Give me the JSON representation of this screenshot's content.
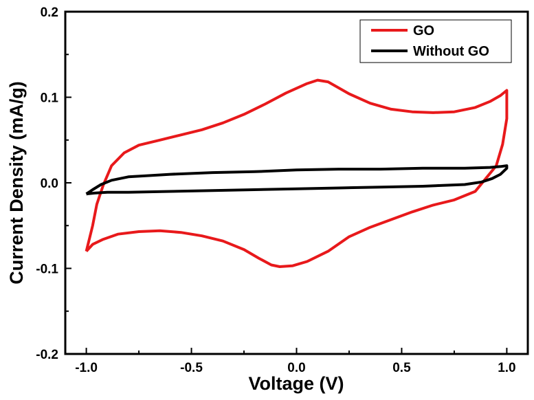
{
  "chart_data": {
    "type": "line",
    "xlabel": "Voltage (V)",
    "ylabel": "Current Density (mA/g)",
    "xlim": [
      -1.1,
      1.1
    ],
    "ylim": [
      -0.2,
      0.2
    ],
    "x_ticks": [
      -1.0,
      -0.5,
      0.0,
      0.5,
      1.0
    ],
    "x_tick_labels": [
      "-1.0",
      "-0.5",
      "0.0",
      "0.5",
      "1.0"
    ],
    "y_ticks": [
      -0.2,
      -0.1,
      0.0,
      0.1,
      0.2
    ],
    "y_tick_labels": [
      "-0.2",
      "-0.1",
      "0.0",
      "0.1",
      "0.2"
    ],
    "grid": false,
    "legend_position": "top-right",
    "series": [
      {
        "name": "GO",
        "color": "#e8191b",
        "x": [
          -1.0,
          -0.97,
          -0.95,
          -0.92,
          -0.88,
          -0.82,
          -0.75,
          -0.65,
          -0.55,
          -0.45,
          -0.35,
          -0.25,
          -0.15,
          -0.05,
          0.05,
          0.1,
          0.15,
          0.25,
          0.35,
          0.45,
          0.55,
          0.65,
          0.75,
          0.85,
          0.92,
          0.97,
          1.0,
          1.0,
          0.98,
          0.95,
          0.9,
          0.85,
          0.75,
          0.65,
          0.55,
          0.45,
          0.35,
          0.25,
          0.15,
          0.05,
          -0.02,
          -0.08,
          -0.12,
          -0.18,
          -0.25,
          -0.35,
          -0.45,
          -0.55,
          -0.65,
          -0.75,
          -0.85,
          -0.92,
          -0.97,
          -1.0
        ],
        "y": [
          -0.08,
          -0.05,
          -0.025,
          -0.003,
          0.02,
          0.035,
          0.044,
          0.05,
          0.056,
          0.062,
          0.07,
          0.08,
          0.092,
          0.105,
          0.116,
          0.12,
          0.118,
          0.104,
          0.093,
          0.086,
          0.083,
          0.082,
          0.083,
          0.088,
          0.095,
          0.102,
          0.108,
          0.075,
          0.045,
          0.02,
          0.005,
          -0.01,
          -0.02,
          -0.026,
          -0.034,
          -0.043,
          -0.052,
          -0.063,
          -0.08,
          -0.092,
          -0.097,
          -0.098,
          -0.096,
          -0.088,
          -0.078,
          -0.068,
          -0.062,
          -0.058,
          -0.056,
          -0.057,
          -0.06,
          -0.066,
          -0.072,
          -0.08
        ]
      },
      {
        "name": "Without GO",
        "color": "#000000",
        "x": [
          -1.0,
          -0.97,
          -0.93,
          -0.88,
          -0.8,
          -0.6,
          -0.4,
          -0.2,
          0.0,
          0.2,
          0.4,
          0.6,
          0.8,
          0.92,
          0.97,
          1.0,
          1.0,
          0.97,
          0.93,
          0.88,
          0.8,
          0.6,
          0.4,
          0.2,
          0.0,
          -0.2,
          -0.4,
          -0.6,
          -0.8,
          -0.9,
          -0.96,
          -1.0
        ],
        "y": [
          -0.013,
          -0.008,
          -0.002,
          0.003,
          0.007,
          0.01,
          0.012,
          0.013,
          0.015,
          0.016,
          0.016,
          0.017,
          0.017,
          0.018,
          0.019,
          0.02,
          0.017,
          0.01,
          0.005,
          0.001,
          -0.002,
          -0.004,
          -0.005,
          -0.006,
          -0.007,
          -0.008,
          -0.009,
          -0.01,
          -0.011,
          -0.011,
          -0.012,
          -0.013
        ]
      }
    ]
  }
}
